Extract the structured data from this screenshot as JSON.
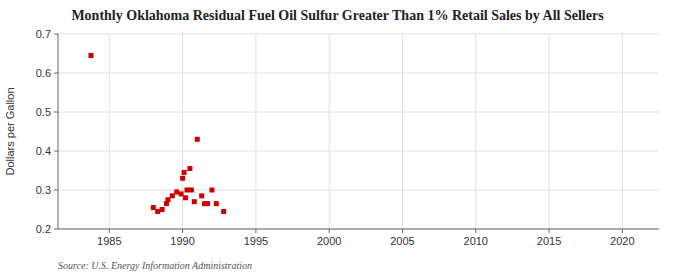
{
  "chart_data": {
    "type": "scatter",
    "title": "Monthly Oklahoma Residual Fuel Oil Sulfur Greater Than 1% Retail Sales by All Sellers",
    "ylabel": "Dollars per Gallon",
    "source": "Source: U.S. Energy Information Administration",
    "color": "#cc0000",
    "grid": true,
    "marker": "square",
    "xlim": [
      1981.5,
      2022.5
    ],
    "ylim": [
      0.2,
      0.7
    ],
    "xticks": [
      1985,
      1990,
      1995,
      2000,
      2005,
      2010,
      2015,
      2020
    ],
    "yticks": [
      0.2,
      0.3,
      0.4,
      0.5,
      0.6,
      0.7
    ],
    "x": [
      1983.75,
      1988.0,
      1988.3,
      1988.6,
      1988.9,
      1989.0,
      1989.3,
      1989.6,
      1989.9,
      1990.0,
      1990.1,
      1990.2,
      1990.3,
      1990.5,
      1990.6,
      1990.8,
      1991.0,
      1991.3,
      1991.5,
      1991.7,
      1992.0,
      1992.3,
      1992.8
    ],
    "values": [
      0.645,
      0.255,
      0.245,
      0.25,
      0.265,
      0.275,
      0.285,
      0.295,
      0.29,
      0.33,
      0.345,
      0.28,
      0.3,
      0.355,
      0.3,
      0.27,
      0.43,
      0.285,
      0.265,
      0.265,
      0.3,
      0.265,
      0.245
    ]
  }
}
